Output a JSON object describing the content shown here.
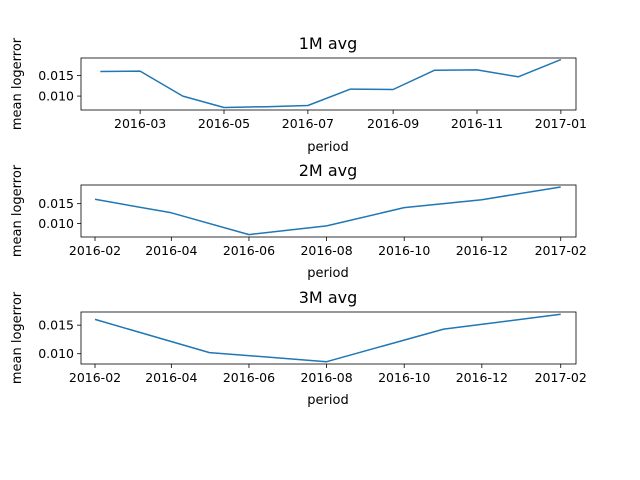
{
  "chart_data": [
    {
      "type": "line",
      "title": "1M avg",
      "xlabel": "period",
      "ylabel": "mean logerror",
      "x": [
        "2016-02",
        "2016-03",
        "2016-04",
        "2016-05",
        "2016-06",
        "2016-07",
        "2016-08",
        "2016-09",
        "2016-10",
        "2016-11",
        "2016-12",
        "2017-01"
      ],
      "series": [
        {
          "values": [
            0.016,
            0.0161,
            0.01,
            0.0072,
            0.0074,
            0.0077,
            0.0117,
            0.0116,
            0.0163,
            0.0164,
            0.0147,
            0.0189
          ]
        }
      ],
      "xticks": [
        "2016-03",
        "2016-05",
        "2016-07",
        "2016-09",
        "2016-11",
        "2017-01"
      ],
      "yticks": [
        0.01,
        0.015
      ],
      "ytick_labels": [
        "0.010",
        "0.015"
      ],
      "xlim": [
        "2016-01-18",
        "2017-01-12"
      ],
      "ylim": [
        0.0066,
        0.0193
      ],
      "grid": false,
      "color": "#1f77b4"
    },
    {
      "type": "line",
      "title": "2M avg",
      "xlabel": "period",
      "ylabel": "mean logerror",
      "x": [
        "2016-02",
        "2016-04",
        "2016-06",
        "2016-08",
        "2016-10",
        "2016-12",
        "2017-02"
      ],
      "series": [
        {
          "values": [
            0.0161,
            0.0127,
            0.0072,
            0.0094,
            0.014,
            0.016,
            0.0192
          ]
        }
      ],
      "xticks": [
        "2016-02",
        "2016-04",
        "2016-06",
        "2016-08",
        "2016-10",
        "2016-12",
        "2017-02"
      ],
      "yticks": [
        0.01,
        0.015
      ],
      "ytick_labels": [
        "0.010",
        "0.015"
      ],
      "xlim": [
        "2016-01-21",
        "2017-02-13"
      ],
      "ylim": [
        0.0066,
        0.0197
      ],
      "grid": false,
      "color": "#1f77b4"
    },
    {
      "type": "line",
      "title": "3M avg",
      "xlabel": "period",
      "ylabel": "mean logerror",
      "x": [
        "2016-02",
        "2016-05",
        "2016-08",
        "2016-11",
        "2017-02"
      ],
      "series": [
        {
          "values": [
            0.016,
            0.0102,
            0.0086,
            0.0143,
            0.0169
          ]
        }
      ],
      "xticks": [
        "2016-02",
        "2016-04",
        "2016-06",
        "2016-08",
        "2016-10",
        "2016-12",
        "2017-02"
      ],
      "yticks": [
        0.01,
        0.015
      ],
      "ytick_labels": [
        "0.010",
        "0.015"
      ],
      "xlim": [
        "2016-01-21",
        "2017-02-13"
      ],
      "ylim": [
        0.0082,
        0.0173
      ],
      "grid": false,
      "color": "#1f77b4"
    }
  ]
}
